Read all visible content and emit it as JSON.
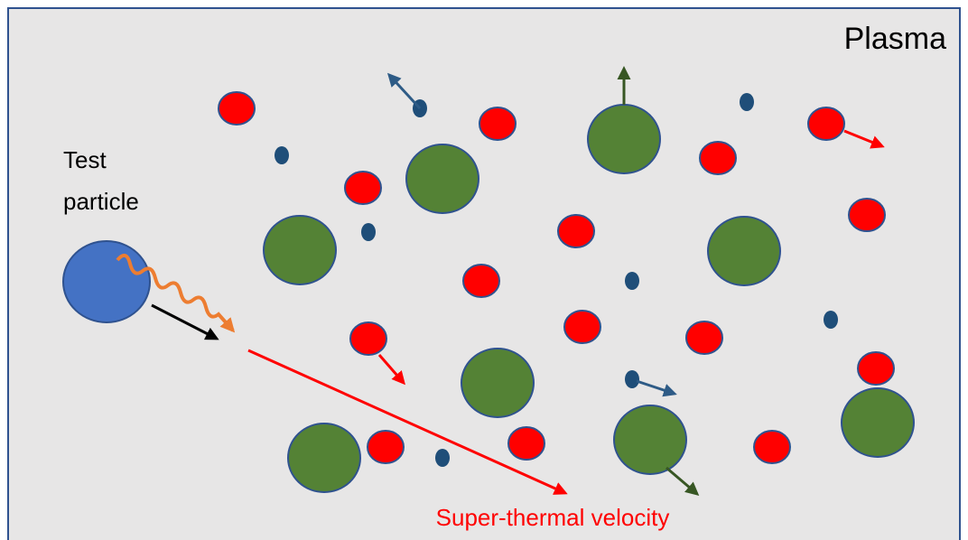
{
  "labels": {
    "plasma": "Plasma",
    "test_particle": [
      "Test",
      "particle"
    ],
    "velocity": "Super-thermal velocity"
  }
}
